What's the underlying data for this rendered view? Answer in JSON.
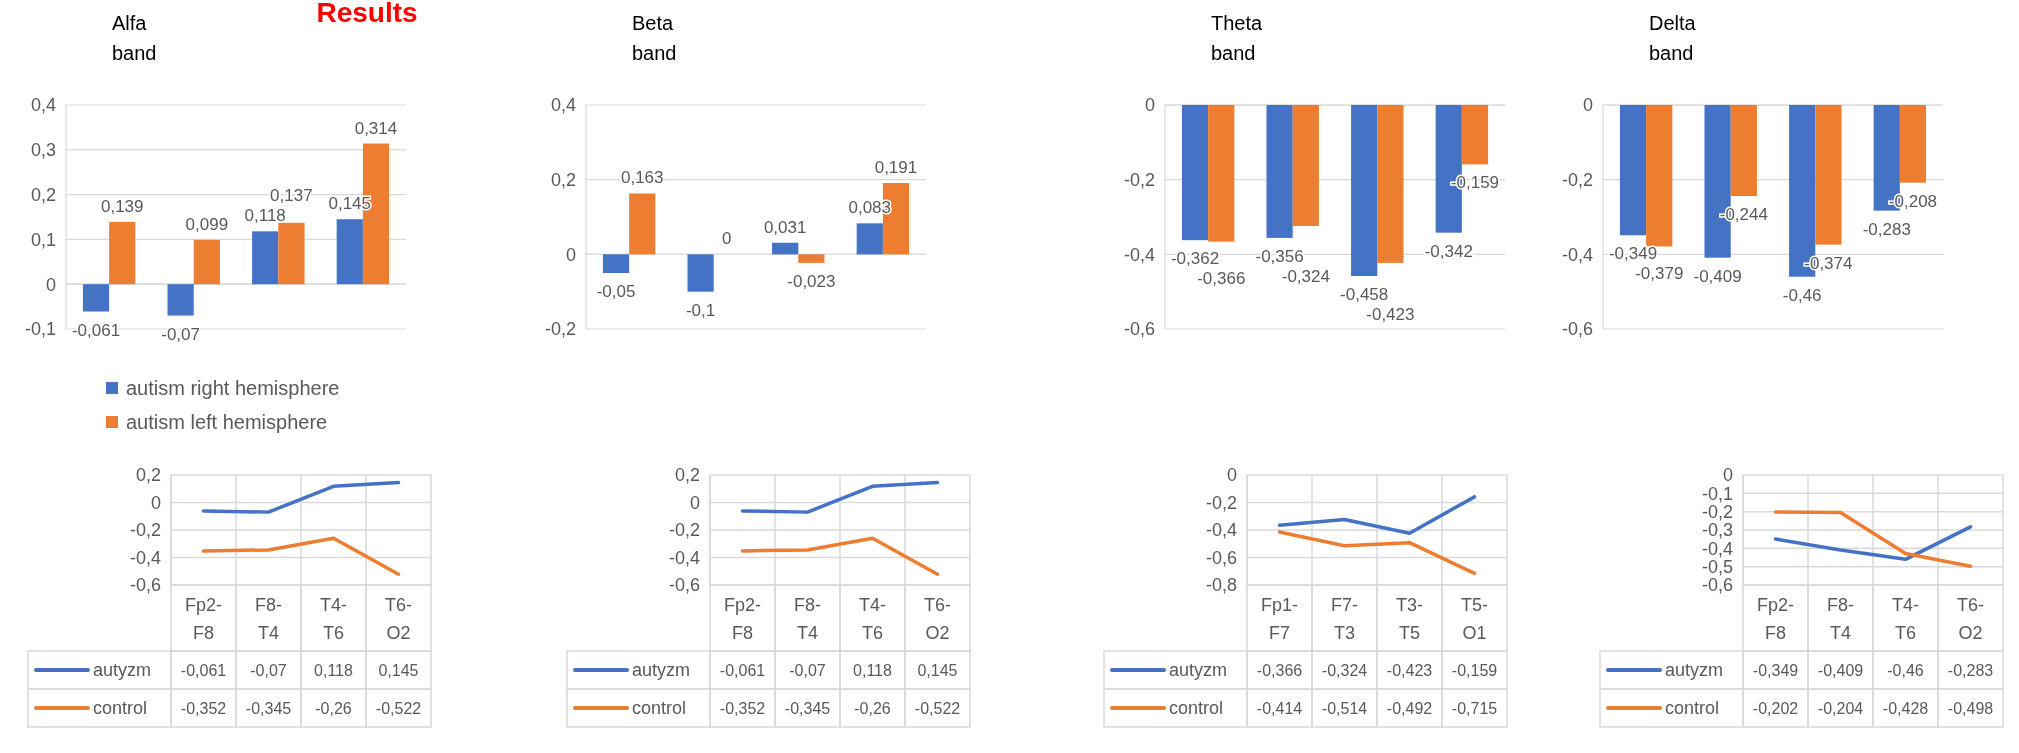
{
  "chart_data": [
    {
      "type": "bar",
      "title": "Alfa band",
      "annotations": [
        "Results"
      ],
      "categories": [
        null,
        null,
        null,
        null
      ],
      "legend": "bottom",
      "grid": "y",
      "ylim": [
        -0.1,
        0.4
      ],
      "yticks": [
        {
          "value": -0.1,
          "label": "-0,1"
        },
        {
          "value": 0,
          "label": "0"
        },
        {
          "value": 0.1,
          "label": "0,1"
        },
        {
          "value": 0.2,
          "label": "0,2"
        },
        {
          "value": 0.3,
          "label": "0,3"
        },
        {
          "value": 0.4,
          "label": "0,4"
        }
      ],
      "series": [
        {
          "name": "autism right hemisphere",
          "color": "#4472c4",
          "values": [
            -0.061,
            -0.07,
            0.118,
            0.145
          ],
          "value_labels": [
            "-0,061",
            "-0,07",
            "0,118",
            "0,145"
          ]
        },
        {
          "name": "autism left hemisphere",
          "color": "#ed7d31",
          "values": [
            0.139,
            0.099,
            0.137,
            0.314
          ],
          "value_labels": [
            "0,139",
            "0,099",
            "0,137",
            "0,314"
          ]
        }
      ]
    },
    {
      "type": "bar",
      "title": "Beta band",
      "categories": [
        null,
        null,
        null,
        null
      ],
      "grid": "y",
      "ylim": [
        -0.2,
        0.4
      ],
      "yticks": [
        {
          "value": -0.2,
          "label": "-0,2"
        },
        {
          "value": 0,
          "label": "0"
        },
        {
          "value": 0.2,
          "label": "0,2"
        },
        {
          "value": 0.4,
          "label": "0,4"
        }
      ],
      "series": [
        {
          "color": "#4472c4",
          "values": [
            -0.05,
            -0.1,
            0.031,
            0.083
          ],
          "value_labels": [
            "-0,05",
            "-0,1",
            "0,031",
            "0,083"
          ]
        },
        {
          "color": "#ed7d31",
          "values": [
            0.163,
            0,
            -0.023,
            0.191
          ],
          "value_labels": [
            "0,163",
            "0",
            "-0,023",
            "0,191"
          ]
        }
      ]
    },
    {
      "type": "bar",
      "title": "Theta band",
      "categories": [
        null,
        null,
        null,
        null
      ],
      "grid": "y",
      "ylim": [
        -0.6,
        0
      ],
      "yticks": [
        {
          "value": -0.6,
          "label": "-0,6"
        },
        {
          "value": -0.4,
          "label": "-0,4"
        },
        {
          "value": -0.2,
          "label": "-0,2"
        },
        {
          "value": 0,
          "label": "0"
        }
      ],
      "series": [
        {
          "color": "#4472c4",
          "values": [
            -0.362,
            -0.356,
            -0.458,
            -0.342
          ],
          "value_labels": [
            "-0,362",
            "-0,356",
            "-0,458",
            "-0,342"
          ]
        },
        {
          "color": "#ed7d31",
          "values": [
            -0.366,
            -0.324,
            -0.423,
            -0.159
          ],
          "value_labels": [
            "-0,366",
            "-0,324",
            "-0,423",
            "-0,159"
          ]
        }
      ]
    },
    {
      "type": "bar",
      "title": "Delta band",
      "categories": [
        null,
        null,
        null,
        null
      ],
      "grid": "y",
      "ylim": [
        -0.6,
        0
      ],
      "yticks": [
        {
          "value": -0.6,
          "label": "-0,6"
        },
        {
          "value": -0.4,
          "label": "-0,4"
        },
        {
          "value": -0.2,
          "label": "-0,2"
        },
        {
          "value": 0,
          "label": "0"
        }
      ],
      "series": [
        {
          "color": "#4472c4",
          "values": [
            -0.349,
            -0.409,
            -0.46,
            -0.283
          ],
          "value_labels": [
            "-0,349",
            "-0,409",
            "-0,46",
            "-0,283"
          ]
        },
        {
          "color": "#ed7d31",
          "values": [
            -0.379,
            -0.244,
            -0.374,
            -0.208
          ],
          "value_labels": [
            "-0,379",
            "-0,244",
            "-0,374",
            "-0,208"
          ]
        }
      ]
    },
    {
      "type": "line",
      "categories": [
        "Fp2-F8",
        "F8-T4",
        "T4-T6",
        "T6-O2"
      ],
      "legend": "bottom",
      "grid": true,
      "ylim": [
        -0.6,
        0.2
      ],
      "yticks": [
        {
          "value": -0.6,
          "label": "-0,6"
        },
        {
          "value": -0.4,
          "label": "-0,4"
        },
        {
          "value": -0.2,
          "label": "-0,2"
        },
        {
          "value": 0,
          "label": "0"
        },
        {
          "value": 0.2,
          "label": "0,2"
        }
      ],
      "series": [
        {
          "name": "autyzm",
          "color": "#4472c4",
          "values": [
            -0.061,
            -0.07,
            0.118,
            0.145
          ],
          "value_labels": [
            "-0,061",
            "-0,07",
            "0,118",
            "0,145"
          ]
        },
        {
          "name": "control",
          "color": "#ed7d31",
          "values": [
            -0.352,
            -0.345,
            -0.26,
            -0.522
          ],
          "value_labels": [
            "-0,352",
            "-0,345",
            "-0,26",
            "-0,522"
          ]
        }
      ]
    },
    {
      "type": "line",
      "categories": [
        "Fp2-F8",
        "F8-T4",
        "T4-T6",
        "T6-O2"
      ],
      "legend": "bottom",
      "grid": true,
      "ylim": [
        -0.6,
        0.2
      ],
      "yticks": [
        {
          "value": -0.6,
          "label": "-0,6"
        },
        {
          "value": -0.4,
          "label": "-0,4"
        },
        {
          "value": -0.2,
          "label": "-0,2"
        },
        {
          "value": 0,
          "label": "0"
        },
        {
          "value": 0.2,
          "label": "0,2"
        }
      ],
      "series": [
        {
          "name": "autyzm",
          "color": "#4472c4",
          "values": [
            -0.061,
            -0.07,
            0.118,
            0.145
          ],
          "value_labels": [
            "-0,061",
            "-0,07",
            "0,118",
            "0,145"
          ]
        },
        {
          "name": "control",
          "color": "#ed7d31",
          "values": [
            -0.352,
            -0.345,
            -0.26,
            -0.522
          ],
          "value_labels": [
            "-0,352",
            "-0,345",
            "-0,26",
            "-0,522"
          ]
        }
      ]
    },
    {
      "type": "line",
      "categories": [
        "Fp1-F7",
        "F7-T3",
        "T3-T5",
        "T5-O1"
      ],
      "legend": "bottom",
      "grid": true,
      "ylim": [
        -0.8,
        0
      ],
      "yticks": [
        {
          "value": -0.8,
          "label": "-0,8"
        },
        {
          "value": -0.6,
          "label": "-0,6"
        },
        {
          "value": -0.4,
          "label": "-0,4"
        },
        {
          "value": -0.2,
          "label": "-0,2"
        },
        {
          "value": 0,
          "label": "0"
        }
      ],
      "series": [
        {
          "name": "autyzm",
          "color": "#4472c4",
          "values": [
            -0.366,
            -0.324,
            -0.423,
            -0.159
          ],
          "value_labels": [
            "-0,366",
            "-0,324",
            "-0,423",
            "-0,159"
          ]
        },
        {
          "name": "control",
          "color": "#ed7d31",
          "values": [
            -0.414,
            -0.514,
            -0.492,
            -0.715
          ],
          "value_labels": [
            "-0,414",
            "-0,514",
            "-0,492",
            "-0,715"
          ]
        }
      ]
    },
    {
      "type": "line",
      "categories": [
        "Fp2-F8",
        "F8-T4",
        "T4-T6",
        "T6-O2"
      ],
      "legend": "bottom",
      "grid": true,
      "ylim": [
        -0.6,
        0
      ],
      "yticks": [
        {
          "value": -0.6,
          "label": "-0,6"
        },
        {
          "value": -0.5,
          "label": "-0,5"
        },
        {
          "value": -0.4,
          "label": "-0,4"
        },
        {
          "value": -0.3,
          "label": "-0,3"
        },
        {
          "value": -0.2,
          "label": "-0,2"
        },
        {
          "value": -0.1,
          "label": "-0,1"
        },
        {
          "value": 0,
          "label": "0"
        }
      ],
      "series": [
        {
          "name": "autyzm",
          "color": "#4472c4",
          "values": [
            -0.349,
            -0.409,
            -0.46,
            -0.283
          ],
          "value_labels": [
            "-0,349",
            "-0,409",
            "-0,46",
            "-0,283"
          ]
        },
        {
          "name": "control",
          "color": "#ed7d31",
          "values": [
            -0.202,
            -0.204,
            -0.428,
            -0.498
          ],
          "value_labels": [
            "-0,202",
            "-0,204",
            "-0,428",
            "-0,498"
          ]
        }
      ]
    }
  ]
}
